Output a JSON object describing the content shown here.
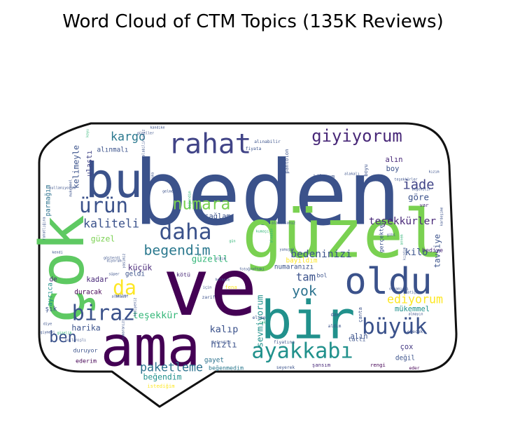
{
  "chart_data": {
    "type": "wordcloud",
    "title": "Word Cloud of CTM Topics (135K Reviews)",
    "mask_shape": "speech-bubble",
    "colormap": "viridis",
    "words": [
      {
        "text": "beden",
        "weight": 100
      },
      {
        "text": "güzel",
        "weight": 80
      },
      {
        "text": "ve",
        "weight": 82
      },
      {
        "text": "çok",
        "weight": 68
      },
      {
        "text": "ama",
        "weight": 72
      },
      {
        "text": "bir",
        "weight": 68
      },
      {
        "text": "bu",
        "weight": 58
      },
      {
        "text": "oldu",
        "weight": 50
      },
      {
        "text": "rahat",
        "weight": 36
      },
      {
        "text": "daha",
        "weight": 30
      },
      {
        "text": "biraz",
        "weight": 30
      },
      {
        "text": "büyük",
        "weight": 29
      },
      {
        "text": "ayakkabı",
        "weight": 29
      },
      {
        "text": "giyiyorum",
        "weight": 25
      },
      {
        "text": "ürün",
        "weight": 27
      },
      {
        "text": "da",
        "weight": 26
      },
      {
        "text": "numara",
        "weight": 21
      },
      {
        "text": "begendim",
        "weight": 19
      },
      {
        "text": "ben",
        "weight": 20
      },
      {
        "text": "yok",
        "weight": 18
      },
      {
        "text": "paketleme",
        "weight": 16
      },
      {
        "text": "kaliteli",
        "weight": 16
      },
      {
        "text": "iade",
        "weight": 17
      },
      {
        "text": "ediyorum",
        "weight": 16
      },
      {
        "text": "kargo",
        "weight": 15
      },
      {
        "text": "tam",
        "weight": 15
      },
      {
        "text": "bedeninizi",
        "weight": 14
      },
      {
        "text": "teşekkürler",
        "weight": 13
      },
      {
        "text": "teşekkür",
        "weight": 13
      },
      {
        "text": "kalıp",
        "weight": 13
      },
      {
        "text": "güzelll",
        "weight": 12
      },
      {
        "text": "göre",
        "weight": 12
      },
      {
        "text": "kilo",
        "weight": 13
      },
      {
        "text": "sevmiyorum",
        "weight": 12
      },
      {
        "text": "harika",
        "weight": 11
      },
      {
        "text": "hızlı",
        "weight": 12
      },
      {
        "text": "küçük",
        "weight": 11
      },
      {
        "text": "güzel",
        "weight": 11
      },
      {
        "text": "kelimeyle",
        "weight": 11
      },
      {
        "text": "tavsiye",
        "weight": 11
      },
      {
        "text": "beğendim",
        "weight": 11
      },
      {
        "text": "boy",
        "weight": 11
      },
      {
        "text": "alın",
        "weight": 10
      },
      {
        "text": "ulaştı",
        "weight": 10
      },
      {
        "text": "sağlam",
        "weight": 10
      },
      {
        "text": "kadar",
        "weight": 10
      },
      {
        "text": "duracak",
        "weight": 9
      },
      {
        "text": "numaranızı",
        "weight": 9
      },
      {
        "text": "mükemmel",
        "weight": 9
      },
      {
        "text": "çox",
        "weight": 10
      },
      {
        "text": "alın",
        "weight": 10
      },
      {
        "text": "bayıldım",
        "weight": 9
      },
      {
        "text": "parmağım",
        "weight": 9
      },
      {
        "text": "alınmalı",
        "weight": 9
      },
      {
        "text": "geldi",
        "weight": 9
      },
      {
        "text": "de",
        "weight": 9
      },
      {
        "text": "şık",
        "weight": 9
      },
      {
        "text": "duruyor",
        "weight": 9
      },
      {
        "text": "ederim",
        "weight": 8
      },
      {
        "text": "gayet",
        "weight": 9
      },
      {
        "text": "beğenmedim",
        "weight": 8
      },
      {
        "text": "ayrıca",
        "weight": 9
      },
      {
        "text": "hediye",
        "weight": 8
      },
      {
        "text": "değil",
        "weight": 8
      },
      {
        "text": "tatlı",
        "weight": 8
      },
      {
        "text": "kötü",
        "weight": 8
      },
      {
        "text": "bol",
        "weight": 8
      },
      {
        "text": "gerçekten",
        "weight": 8
      },
      {
        "text": "çanta",
        "weight": 7
      },
      {
        "text": "dar",
        "weight": 7
      },
      {
        "text": "var",
        "weight": 7
      },
      {
        "text": "boyu",
        "weight": 7
      },
      {
        "text": "eder",
        "weight": 6
      },
      {
        "text": "kiloyum",
        "weight": 7
      },
      {
        "text": "pantolon",
        "weight": 7
      },
      {
        "text": "istediğim",
        "weight": 6
      },
      {
        "text": "rengi",
        "weight": 7
      },
      {
        "text": "şansım",
        "weight": 7
      },
      {
        "text": "seyerek",
        "weight": 7
      },
      {
        "text": "fiyatına",
        "weight": 6
      },
      {
        "text": "alınabilir",
        "weight": 6
      },
      {
        "text": "fiyata",
        "weight": 6
      },
      {
        "text": "fena",
        "weight": 6
      },
      {
        "text": "zarif",
        "weight": 7
      },
      {
        "text": "elime",
        "weight": 6
      },
      {
        "text": "aldım",
        "weight": 6
      },
      {
        "text": "edecek",
        "weight": 6
      },
      {
        "text": "kızıma",
        "weight": 6
      },
      {
        "text": "gelmedi",
        "weight": 5
      },
      {
        "text": "mukemmel",
        "weight": 5
      },
      {
        "text": "kullanıyorum",
        "weight": 5
      },
      {
        "text": "kumaşı",
        "weight": 5
      },
      {
        "text": "için",
        "weight": 5
      },
      {
        "text": "kelime",
        "weight": 5
      },
      {
        "text": "süper",
        "weight": 5
      },
      {
        "text": "kendi",
        "weight": 5
      },
      {
        "text": "alakalı",
        "weight": 5
      },
      {
        "text": "gibi",
        "weight": 5
      },
      {
        "text": "annem",
        "weight": 5
      },
      {
        "text": "olmamıştı",
        "weight": 4
      },
      {
        "text": "beğendim",
        "weight": 5
      },
      {
        "text": "güzeller",
        "weight": 5
      },
      {
        "text": "alabilirsiniz",
        "weight": 4
      },
      {
        "text": "alacaksanız",
        "weight": 4
      },
      {
        "text": "aldık",
        "weight": 5
      },
      {
        "text": "fotoğraftaki",
        "weight": 4
      },
      {
        "text": "almayın",
        "weight": 4
      },
      {
        "text": "kızım",
        "weight": 4
      },
      {
        "text": "kızdım",
        "weight": 4
      },
      {
        "text": "çok",
        "weight": 5
      },
      {
        "text": "gün",
        "weight": 5
      },
      {
        "text": "hediyeniz",
        "weight": 4
      },
      {
        "text": "numaranıza",
        "weight": 4
      },
      {
        "text": "herkese",
        "weight": 4
      },
      {
        "text": "alakası",
        "weight": 4
      },
      {
        "text": "diye",
        "weight": 5
      },
      {
        "text": "giymeyi",
        "weight": 4
      },
      {
        "text": "kullanışlı",
        "weight": 4
      },
      {
        "text": "güzelik",
        "weight": 4
      },
      {
        "text": "beğendiği",
        "weight": 4
      },
      {
        "text": "diyorum",
        "weight": 4
      },
      {
        "text": "kandike",
        "weight": 4
      },
      {
        "text": "yasimiz",
        "weight": 4
      },
      {
        "text": "koyu",
        "weight": 4
      },
      {
        "text": "beğenilir",
        "weight": 4
      },
      {
        "text": "kardeşime",
        "weight": 4
      },
      {
        "text": "rahatlığına",
        "weight": 4
      },
      {
        "text": "teşekkürler",
        "weight": 4
      },
      {
        "text": "gösterdi",
        "weight": 4
      },
      {
        "text": "yumuşak",
        "weight": 4
      },
      {
        "text": "almadan",
        "weight": 4
      },
      {
        "text": "latiçiya",
        "weight": 4
      },
      {
        "text": "tek",
        "weight": 4
      }
    ]
  }
}
